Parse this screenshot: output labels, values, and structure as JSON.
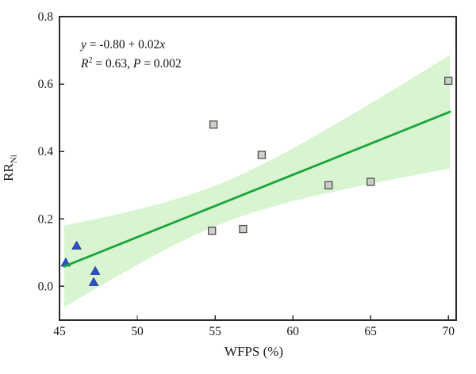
{
  "figure": {
    "background": "#ffffff",
    "frame_color": "#2b2b2b"
  },
  "chart_data": {
    "type": "scatter",
    "title": "",
    "xlabel": "WFPS (%)",
    "ylabel_main": "RR",
    "ylabel_subscript": "Ni",
    "xlim": [
      45,
      70.5
    ],
    "ylim": [
      -0.1,
      0.8
    ],
    "grid": false,
    "legend": "none",
    "xticks": [
      {
        "v": 45,
        "label": "45"
      },
      {
        "v": 50,
        "label": "50"
      },
      {
        "v": 55,
        "label": "55"
      },
      {
        "v": 60,
        "label": "60"
      },
      {
        "v": 65,
        "label": "65"
      },
      {
        "v": 70,
        "label": "70"
      }
    ],
    "yticks": [
      {
        "v": 0.0,
        "label": "0.0"
      },
      {
        "v": 0.2,
        "label": "0.2"
      },
      {
        "v": 0.4,
        "label": "0.4"
      },
      {
        "v": 0.6,
        "label": "0.6"
      },
      {
        "v": 0.8,
        "label": "0.8"
      }
    ],
    "series": [
      {
        "name": "gray-square-points",
        "marker": "square",
        "fill": "#c6c9c2",
        "fill_opacity": 0.85,
        "edge": "#4d4d4d",
        "size": 9,
        "points": [
          [
            54.8,
            0.165
          ],
          [
            56.8,
            0.17
          ],
          [
            54.9,
            0.48
          ],
          [
            58.0,
            0.39
          ],
          [
            62.3,
            0.3
          ],
          [
            65.0,
            0.31
          ],
          [
            70.0,
            0.61
          ]
        ]
      },
      {
        "name": "blue-triangle-points",
        "marker": "triangle",
        "fill": "#2e4fc6",
        "fill_opacity": 1,
        "edge": "#21399c",
        "size": 11,
        "points": [
          [
            45.4,
            0.07
          ],
          [
            46.1,
            0.12
          ],
          [
            47.3,
            0.045
          ],
          [
            47.2,
            0.012
          ]
        ]
      }
    ],
    "regression": {
      "equation_text": "y = -0.80 + 0.02x",
      "stats_text": "R² = 0.63, P = 0.002",
      "slope": 0.0185,
      "intercept": -0.779,
      "x_start": 45.3,
      "x_end": 70.1,
      "line_color": "#1aa53c",
      "line_width": 2.8
    },
    "confidence_band": {
      "x_mean": 55.25,
      "h0_squared": 0.0036,
      "curvature": 0.000112,
      "fill": "rgba(168, 230, 150, 0.45)"
    }
  }
}
